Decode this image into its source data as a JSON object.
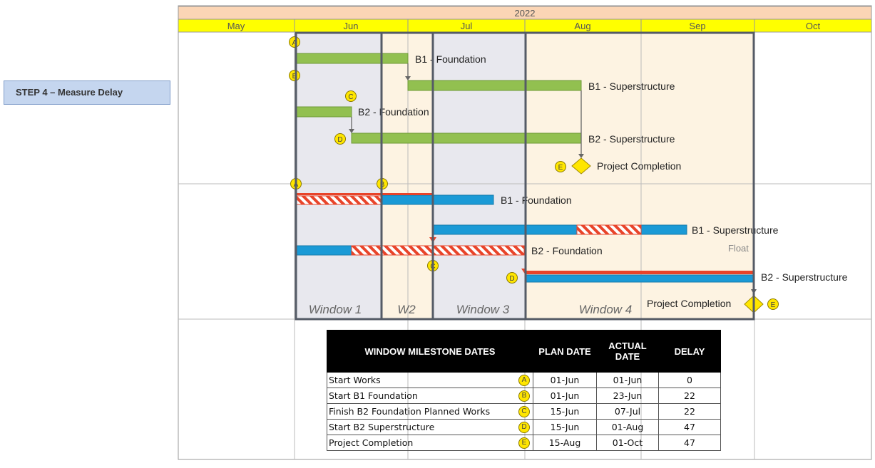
{
  "step_label": "STEP 4 – Measure Delay",
  "year": "2022",
  "months": [
    "May",
    "Jun",
    "Jul",
    "Aug",
    "Sep",
    "Oct"
  ],
  "planned": {
    "bars": [
      {
        "label": "B1 - Foundation"
      },
      {
        "label": "B1 - Superstructure"
      },
      {
        "label": "B2  - Foundation"
      },
      {
        "label": "B2  - Superstructure"
      }
    ],
    "completion_label": "Project Completion"
  },
  "actual": {
    "bars": [
      {
        "label": "B1 - Foundation"
      },
      {
        "label": "B1 - Superstructure"
      },
      {
        "label": "B2 - Foundation"
      },
      {
        "label": "B2 - Superstructure"
      }
    ],
    "float_label": "Float",
    "completion_label": "Project Completion"
  },
  "windows": [
    "Window 1",
    "W2",
    "Window 3",
    "Window 4"
  ],
  "markers": {
    "A": "A",
    "B": "B",
    "C": "C",
    "D": "D",
    "E": "E"
  },
  "colors": {
    "header_yellow": "#ffff00",
    "year_orange": "#fbd5b5",
    "planned_green": "#92c050",
    "actual_blue": "#1a9ad6",
    "delay_red": "#e8442a",
    "window_grey": "#e8e8ee",
    "window_cream": "#fdf3e2",
    "marker_yellow": "#ffe600"
  },
  "table": {
    "headers": [
      "WINDOW MILESTONE DATES",
      "PLAN DATE",
      "ACTUAL DATE",
      "DELAY"
    ],
    "rows": [
      {
        "desc": "Start Works",
        "marker": "A",
        "plan": "01-Jun",
        "actual": "01-Jun",
        "delay": "0"
      },
      {
        "desc": "Start B1 Foundation",
        "marker": "B",
        "plan": "01-Jun",
        "actual": "23-Jun",
        "delay": "22"
      },
      {
        "desc": "Finish B2 Foundation Planned Works",
        "marker": "C",
        "plan": "15-Jun",
        "actual": "07-Jul",
        "delay": "22"
      },
      {
        "desc": "Start B2 Superstructure",
        "marker": "D",
        "plan": "15-Jun",
        "actual": "01-Aug",
        "delay": "47"
      },
      {
        "desc": "Project Completion",
        "marker": "E",
        "plan": "15-Aug",
        "actual": "01-Oct",
        "delay": "47"
      }
    ]
  }
}
